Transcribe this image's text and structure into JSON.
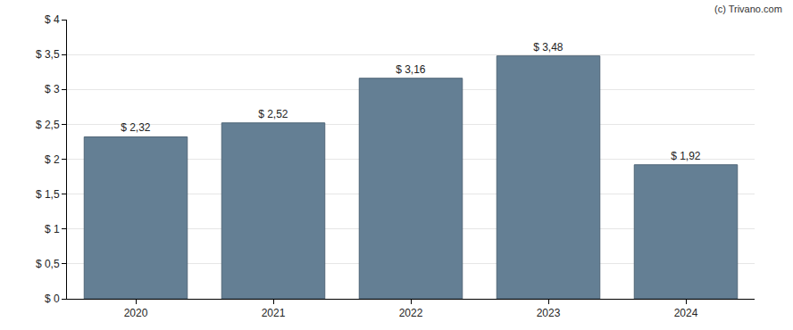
{
  "chart_data": {
    "type": "bar",
    "categories": [
      "2020",
      "2021",
      "2022",
      "2023",
      "2024"
    ],
    "values": [
      2.32,
      2.52,
      3.16,
      3.48,
      1.92
    ],
    "value_labels": [
      "$ 2,32",
      "$ 2,52",
      "$ 3,16",
      "$ 3,48",
      "$ 1,92"
    ],
    "data_labels": true,
    "color": "#647f94",
    "ylim": [
      0,
      4
    ],
    "yticks": [
      {
        "value": 0,
        "label": "$ 0"
      },
      {
        "value": 0.5,
        "label": "$ 0,5"
      },
      {
        "value": 1,
        "label": "$ 1"
      },
      {
        "value": 1.5,
        "label": "$ 1,5"
      },
      {
        "value": 2,
        "label": "$ 2"
      },
      {
        "value": 2.5,
        "label": "$ 2,5"
      },
      {
        "value": 3,
        "label": "$ 3"
      },
      {
        "value": 3.5,
        "label": "$ 3,5"
      },
      {
        "value": 4,
        "label": "$ 4"
      }
    ],
    "grid": true,
    "annotations": [
      "(c) Trivano.com"
    ]
  }
}
